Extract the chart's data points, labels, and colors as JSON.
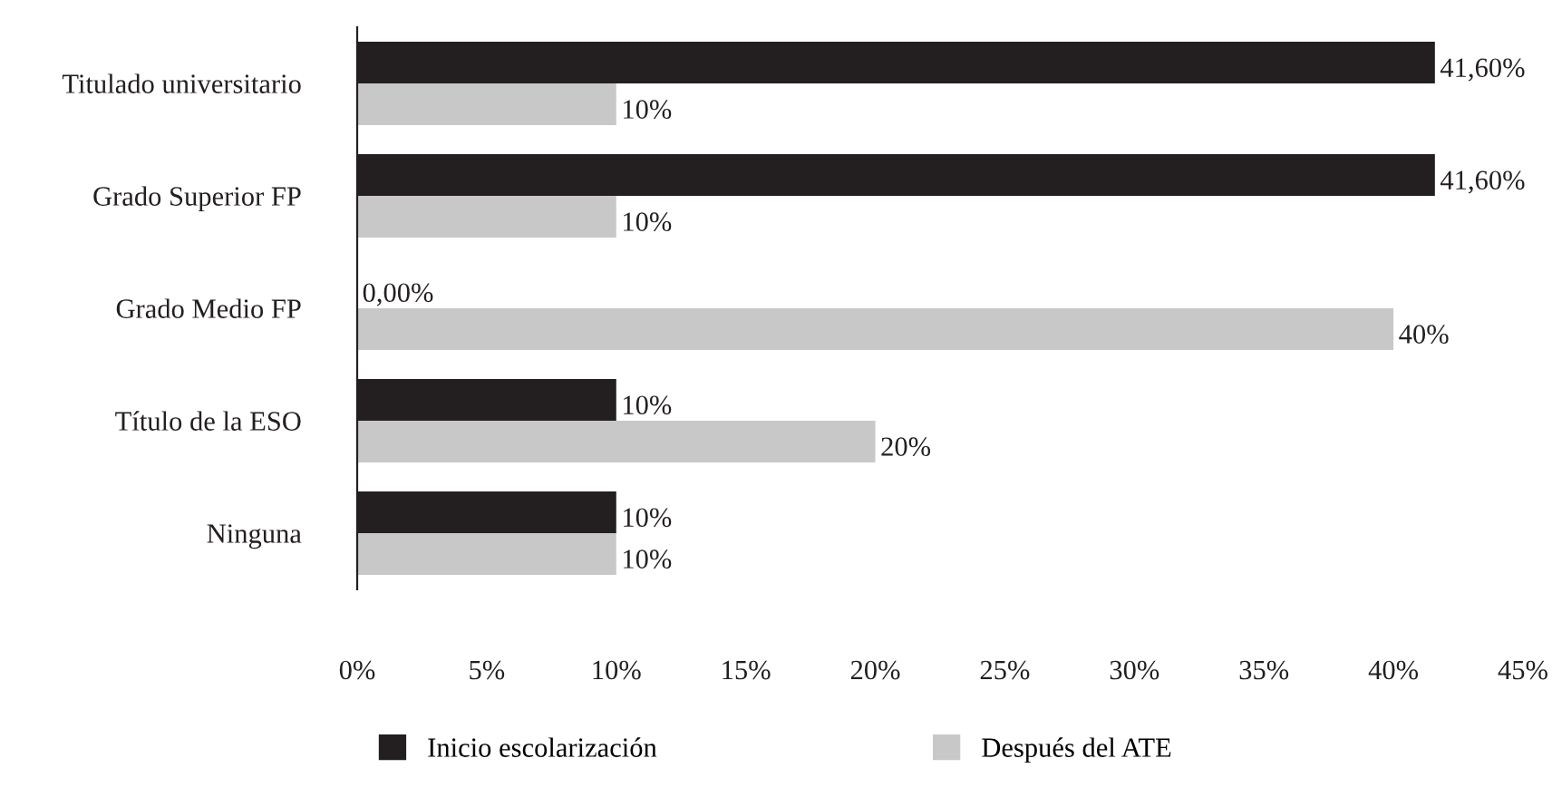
{
  "chart_data": {
    "type": "bar",
    "orientation": "horizontal",
    "categories": [
      "Titulado universitario",
      "Grado Superior FP",
      "Grado Medio FP",
      "Título de la ESO",
      "Ninguna"
    ],
    "series": [
      {
        "name": "Inicio escolarización",
        "color": "#231f20",
        "values": [
          41.6,
          41.6,
          0,
          10,
          10
        ],
        "value_labels": [
          "41,60%",
          "41,60%",
          "0,00%",
          "10%",
          "10%"
        ]
      },
      {
        "name": "Después del ATE",
        "color": "#c8c8c9",
        "values": [
          10,
          10,
          40,
          20,
          10
        ],
        "value_labels": [
          "10%",
          "10%",
          "40%",
          "20%",
          "10%"
        ]
      }
    ],
    "xlim": [
      0,
      45
    ],
    "xticks": [
      {
        "value": 0,
        "label": "0%"
      },
      {
        "value": 5,
        "label": "5%"
      },
      {
        "value": 10,
        "label": "10%"
      },
      {
        "value": 15,
        "label": "15%"
      },
      {
        "value": 20,
        "label": "20%"
      },
      {
        "value": 25,
        "label": "25%"
      },
      {
        "value": 30,
        "label": "30%"
      },
      {
        "value": 35,
        "label": "35%"
      },
      {
        "value": 40,
        "label": "40%"
      },
      {
        "value": 45,
        "label": "45%"
      }
    ],
    "grid": false,
    "legend": "bottom"
  }
}
